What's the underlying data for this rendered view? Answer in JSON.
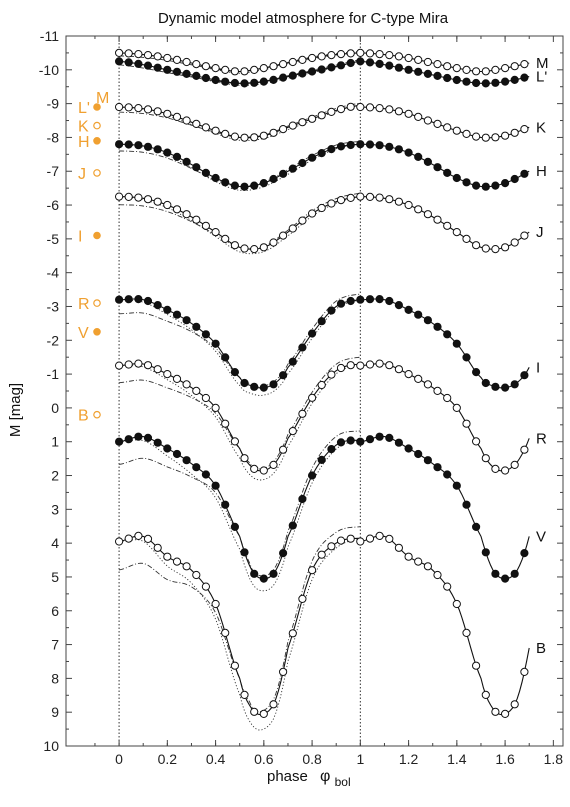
{
  "chart_data": {
    "type": "line",
    "title": "Dynamic model atmosphere for C-type Mira",
    "xlabel": "phase",
    "xlabel_symbol": "φ",
    "xlabel_subscript": "bol",
    "ylabel": "M   [mag]",
    "xlim": [
      -0.22,
      1.84
    ],
    "ylim": [
      10,
      -11
    ],
    "y_inverted": true,
    "xticks": [
      "0",
      "0.2",
      "0.4",
      "0.6",
      "0.8",
      "1",
      "1.2",
      "1.4",
      "1.6",
      "1.8"
    ],
    "yticks": [
      "-11",
      "-10",
      "-9",
      "-8",
      "-7",
      "-6",
      "-5",
      "-4",
      "-3",
      "-2",
      "-1",
      "0",
      "1",
      "2",
      "3",
      "4",
      "5",
      "6",
      "7",
      "8",
      "9",
      "10"
    ],
    "vertical_lines": [
      0,
      1
    ],
    "accent_color": "#f0a030",
    "series": [
      {
        "name": "M",
        "marker": "open",
        "x": [
          0,
          0.1,
          0.2,
          0.3,
          0.4,
          0.5,
          0.6,
          0.7,
          0.8,
          0.9,
          1.0
        ],
        "y": [
          -10.5,
          -10.45,
          -10.35,
          -10.2,
          -10.05,
          -9.95,
          -10.05,
          -10.2,
          -10.35,
          -10.45,
          -10.5
        ]
      },
      {
        "name": "L'",
        "marker": "filled",
        "x": [
          0,
          0.1,
          0.2,
          0.3,
          0.4,
          0.5,
          0.6,
          0.7,
          0.8,
          0.9,
          1.0
        ],
        "y": [
          -10.25,
          -10.15,
          -10.0,
          -9.85,
          -9.7,
          -9.6,
          -9.65,
          -9.8,
          -9.95,
          -10.1,
          -10.25
        ]
      },
      {
        "name": "K",
        "marker": "open",
        "x": [
          0,
          0.1,
          0.2,
          0.3,
          0.4,
          0.5,
          0.6,
          0.7,
          0.8,
          0.9,
          1.0
        ],
        "y": [
          -8.9,
          -8.85,
          -8.7,
          -8.45,
          -8.2,
          -8.0,
          -8.05,
          -8.3,
          -8.55,
          -8.8,
          -8.95
        ]
      },
      {
        "name": "H",
        "marker": "filled",
        "x": [
          0,
          0.1,
          0.2,
          0.3,
          0.4,
          0.5,
          0.6,
          0.7,
          0.8,
          0.9,
          1.0
        ],
        "y": [
          -7.8,
          -7.75,
          -7.55,
          -7.2,
          -6.8,
          -6.55,
          -6.65,
          -7.0,
          -7.4,
          -7.7,
          -7.8
        ]
      },
      {
        "name": "J",
        "marker": "open",
        "x": [
          0,
          0.1,
          0.2,
          0.3,
          0.4,
          0.5,
          0.6,
          0.7,
          0.8,
          0.9,
          1.0
        ],
        "y": [
          -6.25,
          -6.2,
          -6.0,
          -5.65,
          -5.2,
          -4.75,
          -4.75,
          -5.2,
          -5.75,
          -6.1,
          -6.25
        ]
      },
      {
        "name": "I",
        "marker": "filled",
        "x": [
          0,
          0.1,
          0.2,
          0.3,
          0.4,
          0.5,
          0.55,
          0.6,
          0.65,
          0.7,
          0.8,
          0.9,
          1.0
        ],
        "y": [
          -3.2,
          -3.2,
          -2.9,
          -2.5,
          -1.9,
          -0.9,
          -0.65,
          -0.6,
          -0.75,
          -1.2,
          -2.2,
          -3.0,
          -3.2
        ]
      },
      {
        "name": "R",
        "marker": "open",
        "x": [
          0,
          0.1,
          0.2,
          0.3,
          0.4,
          0.5,
          0.55,
          0.6,
          0.65,
          0.7,
          0.8,
          0.9,
          1.0
        ],
        "y": [
          -1.25,
          -1.3,
          -1.0,
          -0.6,
          0.0,
          1.2,
          1.75,
          1.85,
          1.6,
          0.9,
          -0.3,
          -1.1,
          -1.3
        ]
      },
      {
        "name": "V",
        "marker": "filled",
        "x": [
          0,
          0.1,
          0.2,
          0.3,
          0.4,
          0.5,
          0.55,
          0.6,
          0.65,
          0.7,
          0.8,
          0.9,
          1.0
        ],
        "y": [
          1.0,
          0.85,
          1.2,
          1.65,
          2.3,
          3.8,
          4.8,
          5.05,
          4.8,
          3.8,
          2.0,
          1.1,
          0.95
        ]
      },
      {
        "name": "B",
        "marker": "open",
        "x": [
          0,
          0.1,
          0.2,
          0.3,
          0.4,
          0.5,
          0.55,
          0.6,
          0.65,
          0.7,
          0.8,
          0.9,
          1.0
        ],
        "y": [
          3.95,
          3.8,
          4.4,
          4.8,
          5.8,
          8.0,
          8.9,
          9.05,
          8.6,
          7.1,
          4.8,
          4.0,
          3.85
        ]
      }
    ],
    "legend": [
      {
        "label": "M",
        "marker": "open",
        "y": -9.2
      },
      {
        "label": "L'",
        "marker": "filled",
        "y": -8.9
      },
      {
        "label": "K",
        "marker": "open",
        "y": -8.35
      },
      {
        "label": "H",
        "marker": "filled",
        "y": -7.9
      },
      {
        "label": "J",
        "marker": "open",
        "y": -6.95
      },
      {
        "label": "I",
        "marker": "filled",
        "y": -5.1
      },
      {
        "label": "R",
        "marker": "open",
        "y": -3.1
      },
      {
        "label": "V",
        "marker": "filled",
        "y": -2.25
      },
      {
        "label": "B",
        "marker": "open",
        "y": 0.2
      }
    ]
  }
}
